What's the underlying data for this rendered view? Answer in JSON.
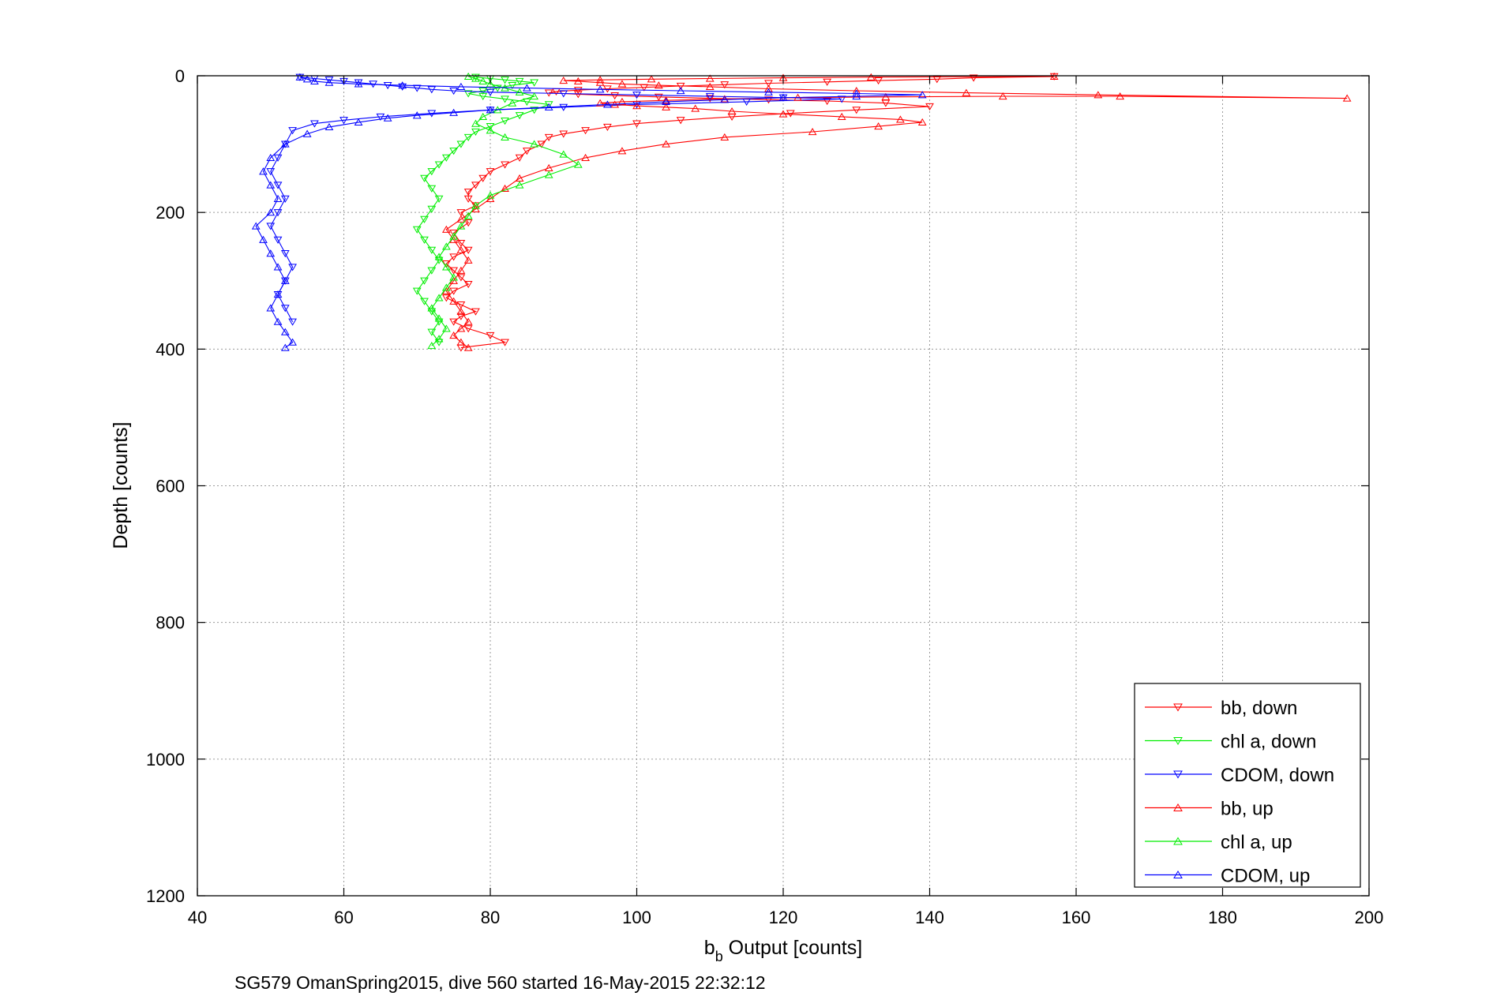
{
  "chart_data": {
    "type": "scatter",
    "title": "",
    "xlabel_main": "b",
    "xlabel_sub": "b",
    "xlabel_rest": " Output [counts]",
    "ylabel": "Depth [counts]",
    "xlim": [
      40,
      200
    ],
    "ylim": [
      0,
      1200
    ],
    "y_reversed": true,
    "grid": true,
    "legend_position": "bottom-right",
    "x_ticks": [
      40,
      60,
      80,
      100,
      120,
      140,
      160,
      180,
      200
    ],
    "x_tick_labels": [
      "40",
      "60",
      "80",
      "100",
      "120",
      "140",
      "160",
      "180",
      "200"
    ],
    "y_ticks": [
      0,
      200,
      400,
      600,
      800,
      1000,
      1200
    ],
    "y_tick_labels": [
      "0",
      "200",
      "400",
      "600",
      "800",
      "1000",
      "1200"
    ],
    "caption": "SG579 OmanSpring2015, dive 560 started 16-May-2015 22:32:12",
    "series": [
      {
        "name": "bb, down",
        "color": "#ff0000",
        "marker": "down",
        "x": [
          157,
          146,
          141,
          133,
          126,
          118,
          112,
          106,
          101,
          96,
          92,
          89,
          88,
          92,
          97,
          103,
          110,
          118,
          126,
          134,
          140,
          130,
          121,
          113,
          106,
          100,
          96,
          93,
          90,
          88,
          87,
          85,
          84,
          82,
          80,
          79,
          78,
          77,
          77,
          78,
          76,
          77,
          75,
          76,
          77,
          75,
          74,
          75,
          76,
          77,
          75,
          74,
          76,
          78,
          76,
          75,
          77,
          80,
          82,
          76
        ],
        "y": [
          1,
          3,
          5,
          7,
          9,
          11,
          13,
          15,
          17,
          19,
          21,
          23,
          25,
          27,
          29,
          31,
          33,
          35,
          37,
          40,
          45,
          50,
          55,
          60,
          65,
          70,
          75,
          80,
          85,
          90,
          100,
          110,
          120,
          130,
          140,
          150,
          160,
          170,
          180,
          190,
          200,
          215,
          230,
          245,
          255,
          265,
          275,
          285,
          295,
          305,
          315,
          325,
          335,
          345,
          352,
          360,
          370,
          380,
          390,
          398
        ]
      },
      {
        "name": "chl a, down",
        "color": "#00ee00",
        "marker": "down",
        "x": [
          78,
          80,
          82,
          84,
          86,
          83,
          81,
          79,
          77,
          79,
          82,
          85,
          88,
          86,
          84,
          82,
          80,
          78,
          77,
          76,
          75,
          74,
          73,
          72,
          71,
          72,
          73,
          72,
          71,
          70,
          71,
          72,
          73,
          72,
          71,
          70,
          71,
          72,
          73,
          72,
          73
        ],
        "y": [
          2,
          4,
          6,
          8,
          10,
          14,
          18,
          22,
          26,
          30,
          34,
          38,
          42,
          50,
          58,
          66,
          74,
          82,
          90,
          100,
          110,
          120,
          130,
          140,
          150,
          165,
          180,
          195,
          210,
          225,
          240,
          255,
          270,
          285,
          300,
          315,
          330,
          345,
          360,
          375,
          390
        ]
      },
      {
        "name": "CDOM, down",
        "color": "#0000ff",
        "marker": "down",
        "x": [
          54,
          56,
          58,
          60,
          62,
          64,
          66,
          68,
          70,
          72,
          75,
          80,
          90,
          100,
          110,
          120,
          128,
          115,
          100,
          90,
          80,
          72,
          65,
          60,
          56,
          53,
          52,
          51,
          50,
          51,
          52,
          51,
          50,
          51,
          52,
          53,
          52,
          51,
          52,
          53
        ],
        "y": [
          2,
          4,
          6,
          8,
          10,
          12,
          14,
          16,
          18,
          20,
          22,
          24,
          26,
          28,
          30,
          32,
          34,
          38,
          42,
          46,
          50,
          55,
          60,
          65,
          70,
          80,
          100,
          120,
          140,
          160,
          180,
          200,
          220,
          240,
          260,
          280,
          300,
          320,
          340,
          360
        ]
      },
      {
        "name": "bb, up",
        "color": "#ff0000",
        "marker": "up",
        "x": [
          77,
          76,
          75,
          76,
          77,
          76,
          75,
          74,
          75,
          76,
          77,
          76,
          75,
          74,
          76,
          78,
          80,
          82,
          84,
          88,
          93,
          98,
          104,
          112,
          124,
          133,
          139,
          136,
          128,
          120,
          113,
          108,
          104,
          100,
          97,
          95,
          98,
          104,
          112,
          122,
          134,
          150,
          166,
          197,
          163,
          145,
          130,
          118,
          110,
          103,
          98,
          95,
          92,
          90,
          95,
          102,
          110,
          120,
          132,
          157
        ],
        "y": [
          398,
          390,
          380,
          370,
          360,
          345,
          330,
          315,
          300,
          285,
          270,
          255,
          240,
          225,
          210,
          195,
          180,
          165,
          150,
          135,
          120,
          110,
          100,
          90,
          82,
          74,
          68,
          64,
          60,
          56,
          52,
          48,
          46,
          44,
          42,
          40,
          38,
          36,
          34,
          32,
          31,
          30,
          30,
          33,
          28,
          25,
          22,
          19,
          16,
          14,
          12,
          10,
          8,
          7,
          6,
          5,
          4,
          3,
          2,
          1
        ]
      },
      {
        "name": "chl a, up",
        "color": "#00ee00",
        "marker": "up",
        "x": [
          72,
          73,
          74,
          73,
          72,
          73,
          74,
          75,
          74,
          73,
          74,
          75,
          76,
          77,
          78,
          80,
          84,
          88,
          92,
          90,
          86,
          82,
          80,
          78,
          79,
          81,
          83,
          86,
          84,
          82,
          80,
          79,
          78,
          77
        ],
        "y": [
          395,
          385,
          370,
          355,
          340,
          325,
          310,
          295,
          280,
          265,
          250,
          235,
          220,
          205,
          190,
          175,
          160,
          145,
          130,
          115,
          100,
          90,
          80,
          70,
          60,
          50,
          40,
          30,
          24,
          18,
          12,
          8,
          4,
          1
        ]
      },
      {
        "name": "CDOM, up",
        "color": "#0000ff",
        "marker": "up",
        "x": [
          52,
          53,
          52,
          51,
          50,
          51,
          52,
          51,
          50,
          49,
          48,
          50,
          51,
          50,
          49,
          50,
          52,
          55,
          58,
          62,
          66,
          70,
          75,
          80,
          88,
          96,
          104,
          112,
          120,
          130,
          139,
          130,
          118,
          106,
          95,
          85,
          76,
          68,
          62,
          58,
          56,
          55,
          54
        ],
        "y": [
          398,
          390,
          375,
          360,
          340,
          320,
          300,
          280,
          260,
          240,
          220,
          200,
          180,
          160,
          140,
          120,
          100,
          85,
          75,
          68,
          62,
          58,
          54,
          50,
          46,
          42,
          38,
          35,
          32,
          30,
          28,
          26,
          24,
          22,
          20,
          18,
          16,
          14,
          12,
          10,
          8,
          5,
          2
        ]
      }
    ]
  }
}
